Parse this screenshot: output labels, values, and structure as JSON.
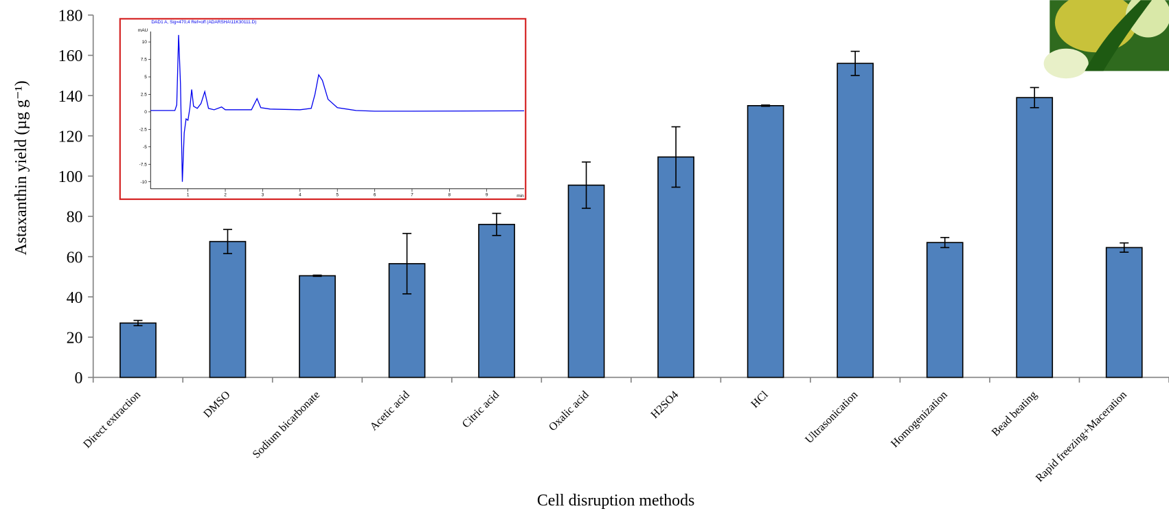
{
  "chart_data": [
    {
      "type": "bar",
      "x_label": "Cell disruption methods",
      "y_label": "Astaxanthin yield (µg g⁻¹)",
      "categories": [
        "Direct extraction",
        "DMSO",
        "Sodium bicarbonate",
        "Acetic acid",
        "Citric acid",
        "Oxalic acid",
        "H2SO4",
        "HCl",
        "Ultrasonication",
        "Homogenization",
        "Bead beating",
        "Rapid freezing+Maceration"
      ],
      "values": [
        27,
        67.5,
        50.5,
        56.5,
        76,
        95.5,
        109.5,
        135,
        156,
        67,
        139,
        64.5
      ],
      "errors": [
        1.3,
        6,
        0.3,
        15,
        5.5,
        11.5,
        15,
        0.3,
        6,
        2.5,
        5,
        2.3
      ],
      "color": "#4f81bd",
      "ylim": [
        0,
        180
      ],
      "yticks": [
        0,
        20,
        40,
        60,
        80,
        100,
        120,
        140,
        160,
        180
      ]
    },
    {
      "type": "line",
      "title": "DAD1 A, Sig=470,4 Ref=off (ADARSHA\\11K30111.D)",
      "x_label": "min",
      "y_label": "mAU",
      "color": "#0000ee",
      "x": [
        0,
        0.65,
        0.7,
        0.75,
        0.8,
        0.85,
        0.9,
        0.95,
        1.0,
        1.05,
        1.1,
        1.15,
        1.25,
        1.35,
        1.45,
        1.55,
        1.7,
        1.9,
        2.0,
        2.7,
        2.85,
        2.95,
        3.2,
        4.0,
        4.3,
        4.4,
        4.5,
        4.6,
        4.75,
        5.0,
        5.5,
        6.0,
        7.0,
        10
      ],
      "values": [
        0.2,
        0.2,
        1,
        11,
        4,
        -10,
        -3,
        -1,
        -1.2,
        0.5,
        3.2,
        0.8,
        0.5,
        1.2,
        2.9,
        0.5,
        0.3,
        0.7,
        0.3,
        0.3,
        1.9,
        0.6,
        0.4,
        0.3,
        0.5,
        2.5,
        5.3,
        4.5,
        1.8,
        0.6,
        0.2,
        0.1,
        0.1,
        0.15
      ],
      "xlim": [
        0,
        10
      ],
      "ylim": [
        -11,
        11.5
      ],
      "xticks": [
        1,
        2,
        3,
        4,
        5,
        6,
        7,
        8,
        9
      ],
      "yticks": [
        -10,
        -7.5,
        -5,
        -2.5,
        0,
        2.5,
        5,
        7.5,
        10
      ]
    }
  ]
}
